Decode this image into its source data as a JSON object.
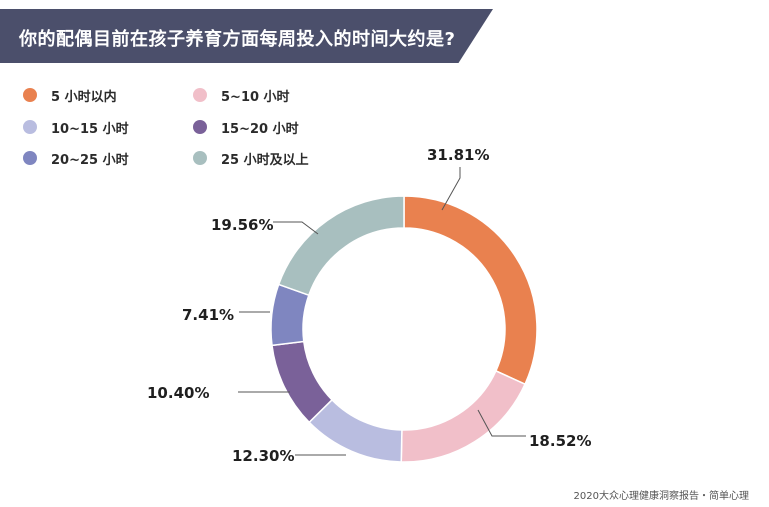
{
  "title": "你的配偶目前在孩子养育方面每周投入的时间大约是?",
  "footer": "2020大众心理健康洞察报告・简单心理",
  "colors": {
    "title_bg": "#4b4f6b",
    "s1": "#e9814f",
    "s2": "#f1bfc9",
    "s3": "#b9bde0",
    "s4": "#7a6199",
    "s5": "#7f86c0",
    "s6": "#a8bfbf"
  },
  "legend": [
    {
      "label": "5 小时以内",
      "color": "#e9814f"
    },
    {
      "label": "5~10 小时",
      "color": "#f1bfc9"
    },
    {
      "label": "10~15 小时",
      "color": "#b9bde0"
    },
    {
      "label": "15~20 小时",
      "color": "#7a6199"
    },
    {
      "label": "20~25 小时",
      "color": "#7f86c0"
    },
    {
      "label": "25 小时及以上",
      "color": "#a8bfbf"
    }
  ],
  "chart_data": {
    "type": "pie",
    "subtype": "donut",
    "categories": [
      "5 小时以内",
      "5~10 小时",
      "10~15 小时",
      "15~20 小时",
      "20~25 小时",
      "25 小时及以上"
    ],
    "values": [
      31.81,
      18.52,
      12.3,
      10.4,
      7.41,
      19.56
    ],
    "labels": [
      "31.81%",
      "18.52%",
      "12.30%",
      "10.40%",
      "7.41%",
      "19.56%"
    ],
    "legend_position": "top-left"
  }
}
